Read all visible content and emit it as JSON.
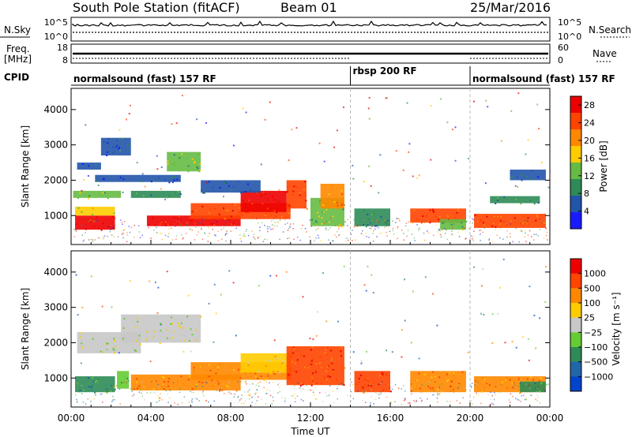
{
  "header": {
    "station": "South Pole Station (fitACF)",
    "beam": "Beam 01",
    "date": "25/Mar/2016"
  },
  "params_panel": {
    "left_labels": [
      "N.Sky",
      "Freq.",
      "[MHz]",
      "CPID"
    ],
    "right_labels": [
      "N.Search",
      "Nave"
    ],
    "noise_ticks_left": [
      "10^5",
      "10^0"
    ],
    "noise_ticks_right": [
      "10^5",
      "10^0"
    ],
    "freq_ticks": [
      "18",
      "8"
    ],
    "nave_ticks": [
      "60",
      "0"
    ],
    "cpid_segments": [
      {
        "label": "normalsound (fast) 157 RF",
        "start_h": 0,
        "end_h": 14
      },
      {
        "label": "rbsp 200 RF",
        "start_h": 14,
        "end_h": 20
      },
      {
        "label": "normalsound (fast) 157 RF",
        "start_h": 20,
        "end_h": 24
      }
    ]
  },
  "colors": {
    "power": [
      "#1a1aff",
      "#2255aa",
      "#2e8b57",
      "#66bb44",
      "#ffcc00",
      "#ff8800",
      "#ff4400",
      "#ee0000"
    ],
    "velocity": [
      "#0044cc",
      "#2266aa",
      "#2e8b57",
      "#66cc33",
      "#c8c8c8",
      "#ffcc00",
      "#ff8800",
      "#ff4400",
      "#ee0000"
    ]
  },
  "chart_data": [
    {
      "type": "heatmap",
      "title": "",
      "xlabel": "",
      "ylabel": "Slant Range [km]",
      "xlim": [
        0,
        24
      ],
      "ylim": [
        180,
        4600
      ],
      "yticks": [
        "1000",
        "2000",
        "3000",
        "4000"
      ],
      "colorbar": {
        "label": "Power [dB]",
        "ticks": [
          "4",
          "8",
          "12",
          "16",
          "20",
          "24",
          "28"
        ],
        "range": [
          0,
          30
        ]
      },
      "bands": [
        {
          "x0": 0.2,
          "x1": 2.2,
          "y0": 600,
          "y1": 1000,
          "color": 7
        },
        {
          "x0": 0.2,
          "x1": 2.2,
          "y0": 1000,
          "y1": 1250,
          "color": 4
        },
        {
          "x0": 0.1,
          "x1": 2.5,
          "y0": 1500,
          "y1": 1700,
          "color": 3
        },
        {
          "x0": 0.3,
          "x1": 1.5,
          "y0": 2300,
          "y1": 2500,
          "color": 1
        },
        {
          "x0": 1.2,
          "x1": 5.5,
          "y0": 1950,
          "y1": 2150,
          "color": 1
        },
        {
          "x0": 3.0,
          "x1": 5.5,
          "y0": 1500,
          "y1": 1700,
          "color": 2
        },
        {
          "x0": 4.8,
          "x1": 6.5,
          "y0": 2250,
          "y1": 2800,
          "color": 3
        },
        {
          "x0": 1.5,
          "x1": 3.0,
          "y0": 2700,
          "y1": 3200,
          "color": 1
        },
        {
          "x0": 3.8,
          "x1": 8.5,
          "y0": 700,
          "y1": 1000,
          "color": 7
        },
        {
          "x0": 6.0,
          "x1": 11.0,
          "y0": 900,
          "y1": 1350,
          "color": 6
        },
        {
          "x0": 8.5,
          "x1": 10.8,
          "y0": 1100,
          "y1": 1700,
          "color": 7
        },
        {
          "x0": 6.5,
          "x1": 9.5,
          "y0": 1650,
          "y1": 2000,
          "color": 1
        },
        {
          "x0": 10.8,
          "x1": 11.8,
          "y0": 1200,
          "y1": 2000,
          "color": 6
        },
        {
          "x0": 12.0,
          "x1": 13.7,
          "y0": 700,
          "y1": 1500,
          "color": 3
        },
        {
          "x0": 12.5,
          "x1": 13.7,
          "y0": 1200,
          "y1": 1900,
          "color": 5
        },
        {
          "x0": 14.2,
          "x1": 16.0,
          "y0": 700,
          "y1": 1200,
          "color": 2
        },
        {
          "x0": 17.0,
          "x1": 19.8,
          "y0": 800,
          "y1": 1200,
          "color": 6
        },
        {
          "x0": 18.5,
          "x1": 19.8,
          "y0": 600,
          "y1": 900,
          "color": 3
        },
        {
          "x0": 20.2,
          "x1": 23.8,
          "y0": 650,
          "y1": 1050,
          "color": 6
        },
        {
          "x0": 21.0,
          "x1": 23.5,
          "y0": 1350,
          "y1": 1550,
          "color": 2
        },
        {
          "x0": 22.0,
          "x1": 23.8,
          "y0": 2000,
          "y1": 2300,
          "color": 1
        }
      ]
    },
    {
      "type": "heatmap",
      "title": "",
      "xlabel": "Time UT",
      "ylabel": "Slant Range [km]",
      "xlim": [
        0,
        24
      ],
      "ylim": [
        180,
        4600
      ],
      "xticks": [
        "00:00",
        "04:00",
        "08:00",
        "12:00",
        "16:00",
        "20:00",
        "00:00"
      ],
      "yticks": [
        "1000",
        "2000",
        "3000",
        "4000"
      ],
      "colorbar": {
        "label": "Velocity [m s⁻¹]",
        "ticks": [
          "1000",
          "500",
          "100",
          "25",
          "−25",
          "−100",
          "−500",
          "−1000"
        ]
      },
      "bands": [
        {
          "x0": 0.2,
          "x1": 2.2,
          "y0": 600,
          "y1": 1050,
          "color": 2
        },
        {
          "x0": 2.3,
          "x1": 2.9,
          "y0": 700,
          "y1": 1200,
          "color": 3
        },
        {
          "x0": 3.0,
          "x1": 8.5,
          "y0": 650,
          "y1": 1100,
          "color": 6
        },
        {
          "x0": 6.0,
          "x1": 11.0,
          "y0": 950,
          "y1": 1450,
          "color": 6
        },
        {
          "x0": 8.5,
          "x1": 11.0,
          "y0": 1150,
          "y1": 1700,
          "color": 5
        },
        {
          "x0": 0.3,
          "x1": 3.5,
          "y0": 1700,
          "y1": 2300,
          "color": 4
        },
        {
          "x0": 2.5,
          "x1": 6.5,
          "y0": 2000,
          "y1": 2800,
          "color": 4
        },
        {
          "x0": 10.8,
          "x1": 13.7,
          "y0": 800,
          "y1": 1900,
          "color": 7
        },
        {
          "x0": 14.2,
          "x1": 16.0,
          "y0": 600,
          "y1": 1200,
          "color": 7
        },
        {
          "x0": 17.0,
          "x1": 19.8,
          "y0": 600,
          "y1": 1200,
          "color": 6
        },
        {
          "x0": 20.2,
          "x1": 23.8,
          "y0": 600,
          "y1": 1050,
          "color": 6
        },
        {
          "x0": 22.5,
          "x1": 23.8,
          "y0": 600,
          "y1": 900,
          "color": 2
        }
      ]
    }
  ]
}
